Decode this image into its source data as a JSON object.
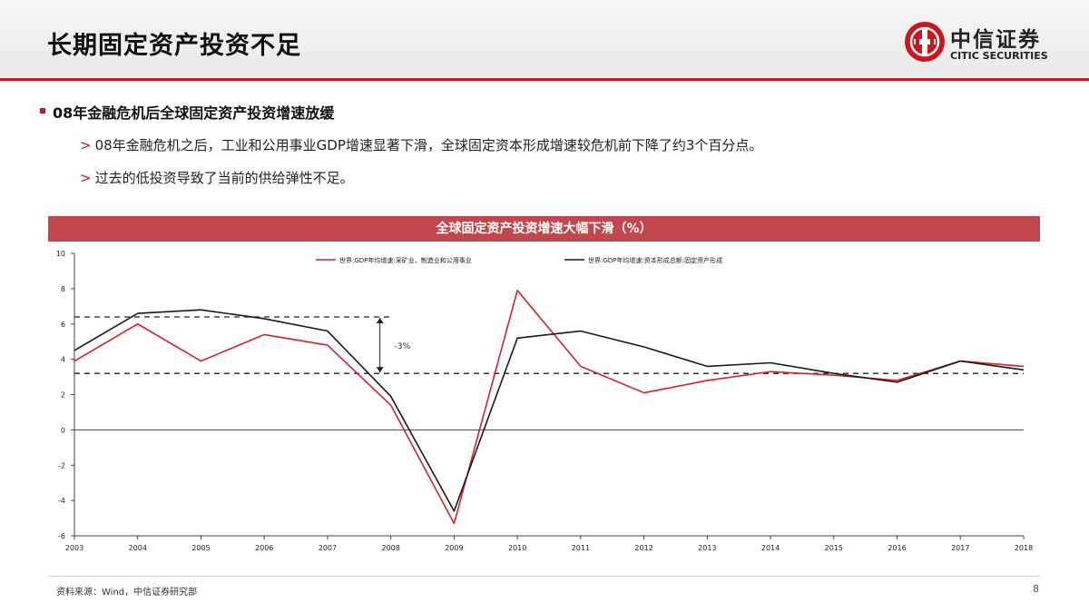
{
  "header": {
    "title": "长期固定资产投资不足",
    "logo_cn": "中信证券",
    "logo_en": "CITIC SECURITIES"
  },
  "content": {
    "main_bullet": "08年金融危机后全球固定资产投资增速放缓",
    "sub_bullets": [
      "08年金融危机之后，工业和公用事业GDP增速显著下滑，全球固定资本形成增速较危机前下降了约3个百分点。",
      "过去的低投资导致了当前的供给弹性不足。"
    ]
  },
  "colors": {
    "brand_red": "#c8181e",
    "banner": "#c2474d",
    "series_red": "#d2232a",
    "series_black": "#1a1a1a"
  },
  "chart_data": {
    "type": "line",
    "title": "全球固定资产投资增速大幅下滑（%）",
    "categories": [
      "2003",
      "2004",
      "2005",
      "2006",
      "2007",
      "2008",
      "2009",
      "2010",
      "2011",
      "2012",
      "2013",
      "2014",
      "2015",
      "2016",
      "2017",
      "2018"
    ],
    "series": [
      {
        "name": "世界:GDP年均增速:采矿业、制造业和公用事业",
        "values": [
          3.9,
          6.0,
          3.9,
          5.4,
          4.8,
          1.4,
          -5.3,
          7.9,
          3.6,
          2.1,
          2.8,
          3.3,
          3.1,
          2.8,
          3.9,
          3.6
        ]
      },
      {
        "name": "世界:GDP年均增速:资本形成总额:固定资产形成",
        "values": [
          4.5,
          6.6,
          6.8,
          6.3,
          5.6,
          1.9,
          -4.6,
          5.2,
          5.6,
          4.7,
          3.6,
          3.8,
          3.2,
          2.7,
          3.9,
          3.4
        ]
      }
    ],
    "ylim": [
      -6,
      10
    ],
    "yticks": [
      -6,
      -4,
      -2,
      0,
      2,
      4,
      6,
      8,
      10
    ],
    "reference_lines": [
      {
        "y": 6.4,
        "from": "2003",
        "to": "2008"
      },
      {
        "y": 3.2,
        "from": "2003",
        "to": "2018"
      }
    ],
    "annotation": {
      "text": "-3%",
      "from_y": 6.4,
      "to_y": 3.2,
      "at": "2008"
    },
    "legend_position": "top",
    "grid": false
  },
  "footer": {
    "source": "资料来源：Wind，中信证券研究部",
    "page": "8"
  }
}
